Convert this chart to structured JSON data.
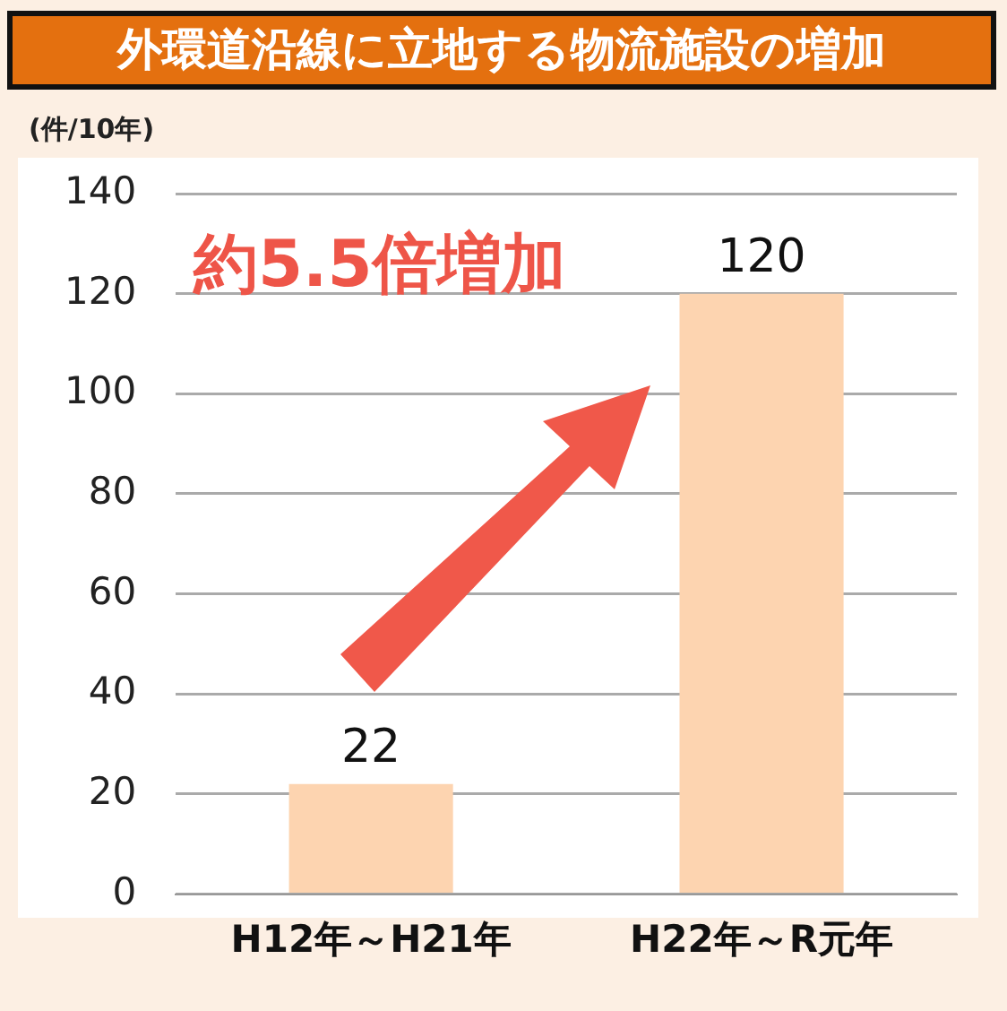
{
  "chart_data": {
    "type": "bar",
    "title": "外環道沿線に立地する物流施設の増加",
    "ylabel": "(件/10年)",
    "categories": [
      "H12年～H21年",
      "H22年～R元年"
    ],
    "values": [
      22,
      120
    ],
    "color": "#fdd4b0",
    "ylim": [
      0,
      140
    ],
    "yticks": [
      0,
      20,
      40,
      60,
      80,
      100,
      120,
      140
    ],
    "grid": "y",
    "data_labels": true,
    "annotations": [
      "約5.5倍増加"
    ]
  }
}
